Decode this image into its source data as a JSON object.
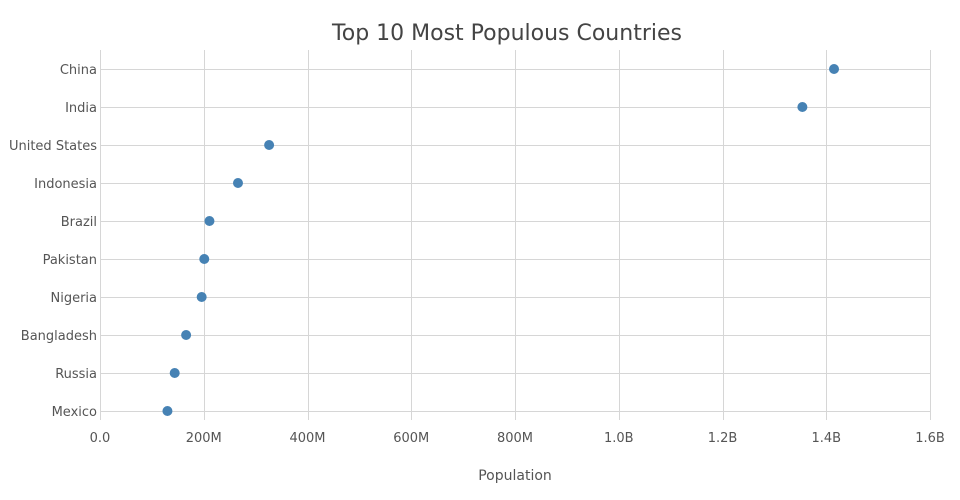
{
  "chart_data": {
    "type": "scatter",
    "title": "Top 10 Most Populous Countries",
    "xlabel": "Population",
    "ylabel": "",
    "xlim": [
      0,
      1600000000
    ],
    "x_ticks": [
      {
        "value": 0,
        "label": "0.0"
      },
      {
        "value": 200000000,
        "label": "200M"
      },
      {
        "value": 400000000,
        "label": "400M"
      },
      {
        "value": 600000000,
        "label": "600M"
      },
      {
        "value": 800000000,
        "label": "800M"
      },
      {
        "value": 1000000000,
        "label": "1.0B"
      },
      {
        "value": 1200000000,
        "label": "1.2B"
      },
      {
        "value": 1400000000,
        "label": "1.4B"
      },
      {
        "value": 1600000000,
        "label": "1.6B"
      }
    ],
    "categories": [
      "China",
      "India",
      "United States",
      "Indonesia",
      "Brazil",
      "Pakistan",
      "Nigeria",
      "Bangladesh",
      "Russia",
      "Mexico"
    ],
    "values": [
      1415000000,
      1354000000,
      326000000,
      266000000,
      211000000,
      201000000,
      196000000,
      166000000,
      144000000,
      130000000
    ],
    "marker_color": "#4682b4",
    "grid": true
  }
}
